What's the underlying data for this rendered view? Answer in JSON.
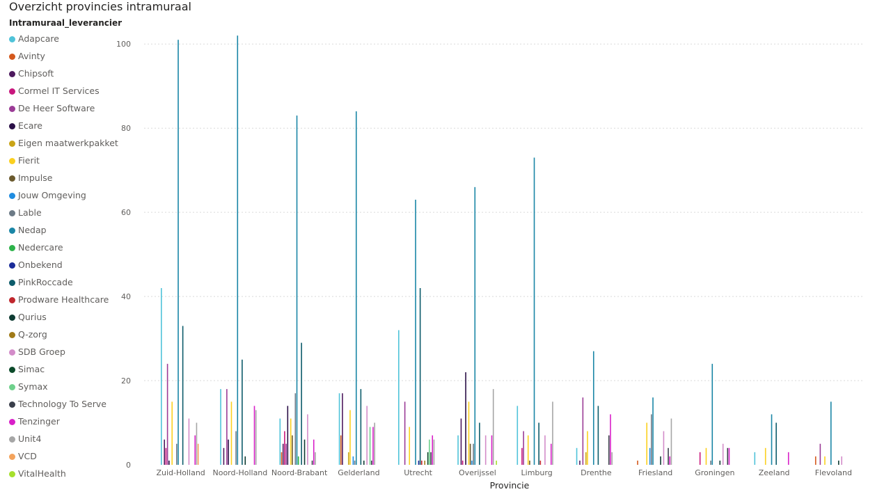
{
  "title": "Overzicht provincies intramuraal",
  "chart_data": {
    "type": "bar",
    "title": "Overzicht provincies intramuraal",
    "legend_title": "Intramuraal_leverancier",
    "legend_position": "left",
    "xlabel": "Provincie",
    "ylabel": "",
    "ylim": [
      0,
      105
    ],
    "yticks": [
      0,
      20,
      40,
      60,
      80,
      100
    ],
    "grid": true,
    "categories": [
      "Zuid-Holland",
      "Noord-Holland",
      "Noord-Brabant",
      "Gelderland",
      "Utrecht",
      "Overijssel",
      "Limburg",
      "Drenthe",
      "Friesland",
      "Groningen",
      "Zeeland",
      "Flevoland"
    ],
    "series": [
      {
        "name": "Adapcare",
        "color": "#4FC3D9",
        "values": [
          42,
          18,
          11,
          17,
          32,
          7,
          14,
          4,
          0,
          0,
          3,
          0
        ]
      },
      {
        "name": "Avinty",
        "color": "#D4581C",
        "values": [
          0,
          0,
          3,
          7,
          0,
          0,
          0,
          0,
          1,
          0,
          0,
          2
        ]
      },
      {
        "name": "Chipsoft",
        "color": "#4D1A5E",
        "values": [
          6,
          4,
          5,
          17,
          0,
          11,
          0,
          1,
          0,
          0,
          0,
          0
        ]
      },
      {
        "name": "Cormel IT Services",
        "color": "#C8177D",
        "values": [
          4,
          0,
          8,
          0,
          0,
          1,
          4,
          0,
          0,
          3,
          0,
          0
        ]
      },
      {
        "name": "De Heer Software",
        "color": "#9B3C96",
        "values": [
          24,
          18,
          5,
          0,
          15,
          0,
          8,
          16,
          0,
          0,
          0,
          5
        ]
      },
      {
        "name": "Ecare",
        "color": "#2A0F47",
        "values": [
          1,
          6,
          14,
          0,
          0,
          22,
          0,
          0,
          0,
          0,
          0,
          0
        ]
      },
      {
        "name": "Eigen maatwerkpakket",
        "color": "#C9A417",
        "values": [
          0,
          0,
          0,
          3,
          0,
          0,
          0,
          3,
          0,
          0,
          0,
          0
        ]
      },
      {
        "name": "Fierit",
        "color": "#FBD01F",
        "values": [
          15,
          15,
          11,
          13,
          9,
          15,
          7,
          8,
          10,
          4,
          4,
          2
        ]
      },
      {
        "name": "Impulse",
        "color": "#6B5A2E",
        "values": [
          0,
          0,
          7,
          0,
          0,
          5,
          1,
          0,
          0,
          0,
          0,
          0
        ]
      },
      {
        "name": "Jouw Omgeving",
        "color": "#1F8CE0",
        "values": [
          0,
          0,
          0,
          2,
          0,
          1,
          0,
          0,
          4,
          0,
          0,
          0
        ]
      },
      {
        "name": "Lable",
        "color": "#6C7A86",
        "values": [
          5,
          8,
          17,
          1,
          0,
          5,
          0,
          0,
          12,
          1,
          0,
          0
        ]
      },
      {
        "name": "Nedap",
        "color": "#1A86A6",
        "values": [
          101,
          102,
          83,
          84,
          63,
          66,
          73,
          27,
          16,
          24,
          12,
          15
        ]
      },
      {
        "name": "Nedercare",
        "color": "#2DB34A",
        "values": [
          0,
          0,
          2,
          0,
          0,
          0,
          0,
          0,
          0,
          0,
          0,
          0
        ]
      },
      {
        "name": "Onbekend",
        "color": "#1A2C99",
        "values": [
          0,
          0,
          0,
          0,
          1,
          0,
          0,
          0,
          0,
          0,
          0,
          0
        ]
      },
      {
        "name": "PinkRoccade",
        "color": "#0D5C6B",
        "values": [
          33,
          25,
          29,
          18,
          42,
          10,
          10,
          14,
          0,
          0,
          10,
          0
        ]
      },
      {
        "name": "Prodware Healthcare",
        "color": "#C0272D",
        "values": [
          0,
          0,
          0,
          0,
          1,
          0,
          1,
          0,
          0,
          0,
          0,
          0
        ]
      },
      {
        "name": "Qurius",
        "color": "#0E3B32",
        "values": [
          0,
          2,
          6,
          1,
          0,
          0,
          0,
          0,
          2,
          1,
          0,
          1
        ]
      },
      {
        "name": "Q-zorg",
        "color": "#A07A17",
        "values": [
          0,
          0,
          0,
          0,
          1,
          0,
          0,
          0,
          0,
          0,
          0,
          0
        ]
      },
      {
        "name": "SDB Groep",
        "color": "#D38CC9",
        "values": [
          11,
          0,
          12,
          14,
          0,
          7,
          7,
          0,
          8,
          5,
          0,
          2
        ]
      },
      {
        "name": "Simac",
        "color": "#0B4A2A",
        "values": [
          0,
          0,
          0,
          0,
          3,
          0,
          0,
          0,
          0,
          0,
          0,
          0
        ]
      },
      {
        "name": "Symax",
        "color": "#6FD18C",
        "values": [
          0,
          0,
          0,
          9,
          6,
          0,
          0,
          0,
          0,
          0,
          0,
          0
        ]
      },
      {
        "name": "Technology To Serve",
        "color": "#3A3F4B",
        "values": [
          0,
          0,
          1,
          1,
          3,
          0,
          0,
          7,
          4,
          4,
          0,
          0
        ]
      },
      {
        "name": "Tenzinger",
        "color": "#D81FC8",
        "values": [
          7,
          14,
          6,
          9,
          7,
          7,
          5,
          12,
          2,
          4,
          3,
          0
        ]
      },
      {
        "name": "Unit4",
        "color": "#A6A6A6",
        "values": [
          10,
          13,
          3,
          10,
          6,
          18,
          15,
          3,
          11,
          0,
          0,
          0
        ]
      },
      {
        "name": "VCD",
        "color": "#F4A35C",
        "values": [
          5,
          0,
          0,
          0,
          0,
          0,
          0,
          0,
          0,
          0,
          0,
          0
        ]
      },
      {
        "name": "VitalHealth",
        "color": "#A6E02C",
        "values": [
          0,
          0,
          0,
          0,
          0,
          1,
          0,
          0,
          0,
          0,
          0,
          0
        ]
      }
    ]
  }
}
